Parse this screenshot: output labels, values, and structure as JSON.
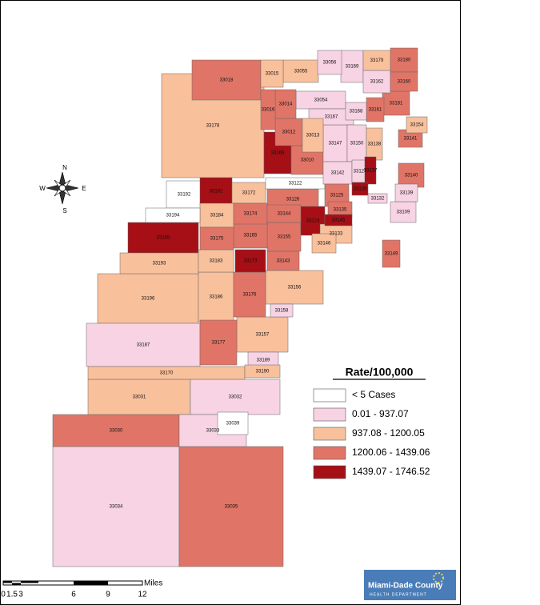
{
  "legend": {
    "title": "Rate/100,000",
    "items": [
      {
        "label": "< 5 Cases",
        "color": "#ffffff",
        "zips": [
          "33192",
          "33194",
          "33122",
          "33039"
        ]
      },
      {
        "label": "0.01 - 937.07",
        "color": "#f7d3e3",
        "zips": [
          "33056",
          "33169",
          "33162",
          "33054",
          "33167",
          "33168",
          "33147",
          "33150",
          "33142",
          "33127",
          "33187",
          "33032",
          "33033",
          "33034",
          "33158",
          "33189",
          "33132",
          "33109",
          "33139"
        ]
      },
      {
        "label": "937.08 - 1200.05",
        "color": "#f9c09c",
        "zips": [
          "33055",
          "33015",
          "33179",
          "33178",
          "33013",
          "33172",
          "33184",
          "33193",
          "33183",
          "33196",
          "33186",
          "33157",
          "33156",
          "33170",
          "33190",
          "33031",
          "33133",
          "33138",
          "33154",
          "33146"
        ]
      },
      {
        "label": "1200.06 - 1439.06",
        "color": "#e07567",
        "zips": [
          "33018",
          "33180",
          "33160",
          "33181",
          "33161",
          "33014",
          "33016",
          "33012",
          "33010",
          "33126",
          "33125",
          "33144",
          "33174",
          "33165",
          "33155",
          "33175",
          "33143",
          "33176",
          "33177",
          "33030",
          "33035",
          "33141",
          "33140",
          "33149",
          "33135"
        ]
      },
      {
        "label": "1439.07 - 1746.52",
        "color": "#a50f15",
        "zips": [
          "33166",
          "33182",
          "33185",
          "33173",
          "33124",
          "33145",
          "33137",
          "33128"
        ]
      }
    ]
  },
  "compass": {
    "n": "N",
    "s": "S",
    "e": "E",
    "w": "W"
  },
  "scale_bar": {
    "unit": "Miles",
    "ticks": [
      "0",
      "1.5",
      "3",
      "6",
      "9",
      "12"
    ]
  },
  "logo": {
    "name": "Miami-Dade County",
    "department": "HEALTH DEPARTMENT"
  }
}
